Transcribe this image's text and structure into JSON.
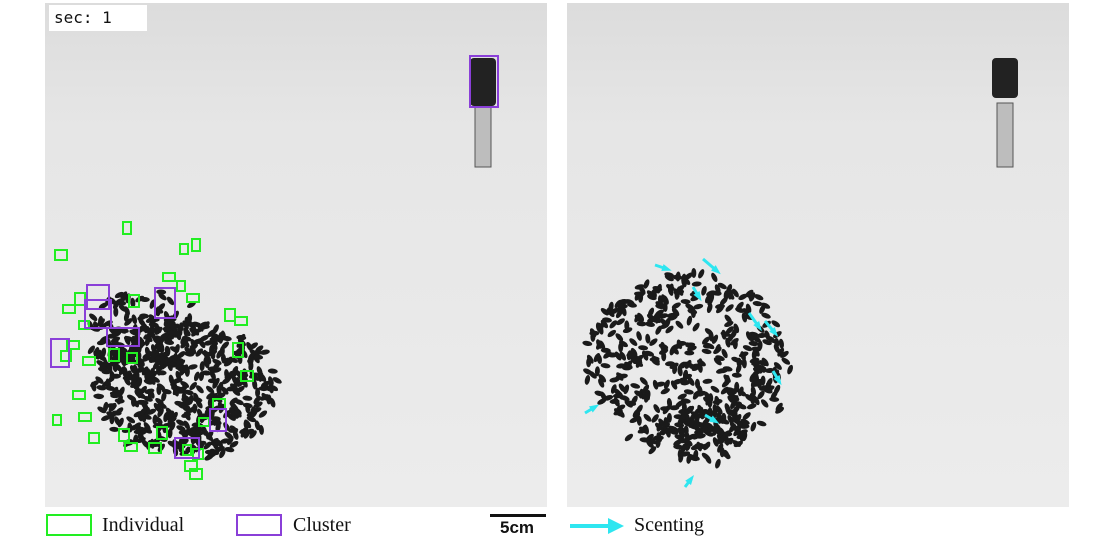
{
  "timer": {
    "label": "sec:",
    "value": "1"
  },
  "legend": {
    "individual": {
      "label": "Individual",
      "color": "#22ee22"
    },
    "cluster": {
      "label": "Cluster",
      "color": "#8a3fd8"
    },
    "scenting": {
      "label": "Scenting",
      "color": "#2ee6f0"
    },
    "scale": {
      "label": "5cm"
    }
  },
  "colors": {
    "background": "#e9e9e9",
    "bee": "#1a1a1a"
  },
  "panels": [
    {
      "name": "left-panel",
      "detections": "Individual and Cluster bounding boxes"
    },
    {
      "name": "right-panel",
      "detections": "Scenting arrows"
    }
  ]
}
